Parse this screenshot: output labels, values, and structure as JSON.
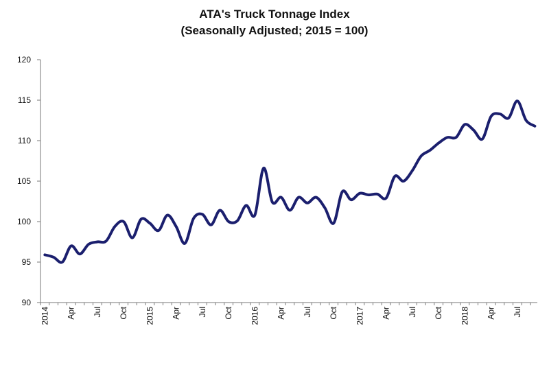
{
  "chart_data": {
    "type": "line",
    "title": "ATA's Truck Tonnage Index",
    "subtitle": "(Seasonally Adjusted; 2015 = 100)",
    "categories": [
      "2014",
      null,
      null,
      "Apr",
      null,
      null,
      "Jul",
      null,
      null,
      "Oct",
      null,
      null,
      "2015",
      null,
      null,
      "Apr",
      null,
      null,
      "Jul",
      null,
      null,
      "Oct",
      null,
      null,
      "2016",
      null,
      null,
      "Apr",
      null,
      null,
      "Jul",
      null,
      null,
      "Oct",
      null,
      null,
      "2017",
      null,
      null,
      "Apr",
      null,
      null,
      "Jul",
      null,
      null,
      "Oct",
      null,
      null,
      "2018",
      null,
      null,
      "Apr",
      null,
      null,
      "Jul",
      null,
      null
    ],
    "series": [
      {
        "name": "Truck Tonnage Index",
        "color": "#1b1f6e",
        "values": [
          95.9,
          95.6,
          95.0,
          97.0,
          96.0,
          97.2,
          97.5,
          97.6,
          99.4,
          100.0,
          98.0,
          100.3,
          99.8,
          98.9,
          100.8,
          99.4,
          97.3,
          100.4,
          100.9,
          99.6,
          101.4,
          100.0,
          100.1,
          102.0,
          100.8,
          106.6,
          102.4,
          103.0,
          101.4,
          103.0,
          102.3,
          103.0,
          101.7,
          99.8,
          103.7,
          102.7,
          103.5,
          103.3,
          103.4,
          102.9,
          105.6,
          105.0,
          106.3,
          108.1,
          108.8,
          109.7,
          110.4,
          110.4,
          112.0,
          111.3,
          110.2,
          113.0,
          113.3,
          112.8,
          114.9,
          112.5,
          111.8
        ]
      }
    ],
    "ylim": [
      90,
      120
    ],
    "yticks": [
      90,
      95,
      100,
      105,
      110,
      115,
      120
    ],
    "grid": false
  }
}
